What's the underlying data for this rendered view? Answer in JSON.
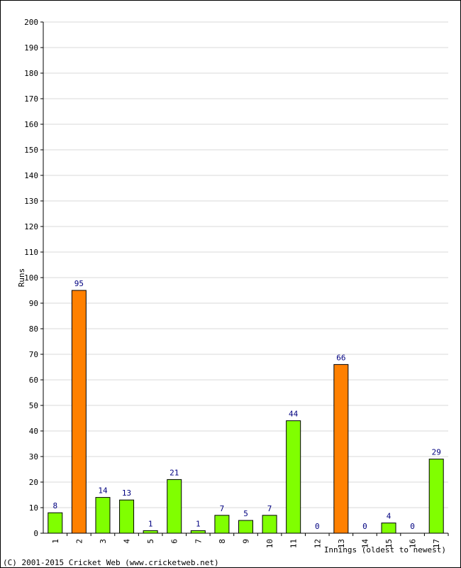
{
  "chart_data": {
    "type": "bar",
    "categories": [
      "1",
      "2",
      "3",
      "4",
      "5",
      "6",
      "7",
      "8",
      "9",
      "10",
      "11",
      "12",
      "13",
      "14",
      "15",
      "16",
      "17"
    ],
    "values": [
      8,
      95,
      14,
      13,
      1,
      21,
      1,
      7,
      5,
      7,
      44,
      0,
      66,
      0,
      4,
      0,
      29
    ],
    "highlight_threshold": 50,
    "ylabel": "Runs",
    "xlabel": "Innings (oldest to newest)",
    "ylim": [
      0,
      200
    ],
    "ytick_step": 10,
    "grid": true,
    "colors": {
      "normal_bar": "#80ff00",
      "highlight_bar": "#ff8000",
      "bar_border": "#000000",
      "grid": "#d8d8d8",
      "data_label": "#000080"
    }
  },
  "footer": {
    "copyright": "(C) 2001-2015 Cricket Web (www.cricketweb.net)"
  }
}
